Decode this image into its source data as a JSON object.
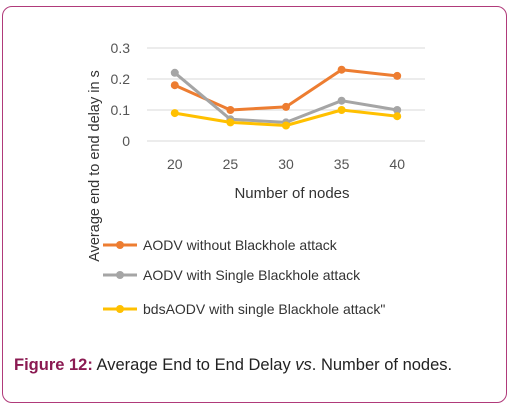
{
  "chart_data": {
    "type": "line",
    "x": [
      20,
      25,
      30,
      35,
      40
    ],
    "categories": [
      "20",
      "25",
      "30",
      "35",
      "40"
    ],
    "xlabel": "Number  of nodes",
    "ylabel": "Average end to end delay in s",
    "ylim": [
      0,
      0.3
    ],
    "yticks": [
      "0",
      "0.1",
      "0.2",
      "0.3"
    ],
    "grid": true,
    "legend_position": "bottom",
    "series": [
      {
        "name": "AODV without Blackhole attack",
        "color": "#ed7d31",
        "values": [
          0.18,
          0.1,
          0.11,
          0.23,
          0.21
        ]
      },
      {
        "name": "AODV with Single Blackhole attack",
        "color": "#a5a5a5",
        "values": [
          0.22,
          0.07,
          0.06,
          0.13,
          0.1
        ]
      },
      {
        "name": "bdsAODV with single Blackhole attack\"",
        "color": "#ffc000",
        "values": [
          0.09,
          0.06,
          0.05,
          0.1,
          0.08
        ]
      }
    ]
  },
  "caption": {
    "label": "Figure 12:",
    "text_before": " Average End to End Delay ",
    "italic": "vs",
    "text_after": ". Number of nodes."
  }
}
